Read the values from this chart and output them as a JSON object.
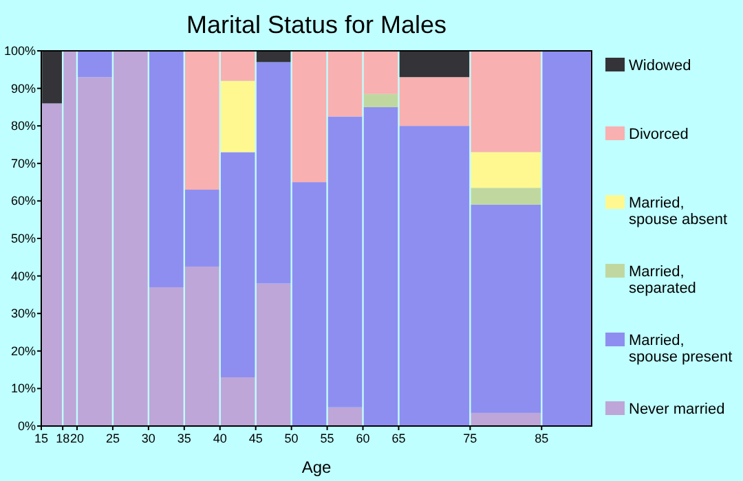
{
  "chart_data": {
    "type": "bar",
    "title": "Marital Status for Males",
    "xlabel": "Age",
    "stacked": true,
    "legend": "right",
    "grid": false,
    "x": [
      16.5,
      19,
      22.5,
      27.5,
      32.5,
      37.5,
      42.5,
      47.5,
      52.5,
      57.5,
      62.5,
      70,
      80,
      88.5
    ],
    "xlim": [
      15,
      92
    ],
    "xticks": [
      15,
      18,
      20,
      25,
      30,
      35,
      40,
      45,
      50,
      55,
      60,
      65,
      75,
      85
    ],
    "ylim": [
      0,
      100
    ],
    "yticks": [
      {
        "value": 0,
        "label": "0%"
      },
      {
        "value": 10,
        "label": "10%"
      },
      {
        "value": 20,
        "label": "20%"
      },
      {
        "value": 30,
        "label": "30%"
      },
      {
        "value": 40,
        "label": "40%"
      },
      {
        "value": 50,
        "label": "50%"
      },
      {
        "value": 60,
        "label": "60%"
      },
      {
        "value": 70,
        "label": "70%"
      },
      {
        "value": 80,
        "label": "80%"
      },
      {
        "value": 90,
        "label": "90%"
      },
      {
        "value": 100,
        "label": "100%"
      }
    ],
    "series": [
      {
        "name": "Never married",
        "color": "#bea6d8",
        "values": [
          86,
          100,
          93,
          100,
          37,
          42.5,
          13,
          38,
          0,
          5,
          0,
          0,
          3.5,
          0
        ]
      },
      {
        "name": "Married, spouse present",
        "color": "#8e8ef0",
        "values": [
          0,
          0,
          7,
          0,
          63,
          20.5,
          60,
          59,
          65,
          77.5,
          85,
          80,
          55.5,
          100
        ]
      },
      {
        "name": "Married, separated",
        "color": "#c0d8a0",
        "values": [
          0,
          0,
          0,
          0,
          0,
          0,
          0,
          0,
          0,
          0,
          3.5,
          0,
          4.5,
          0
        ]
      },
      {
        "name": "Married, spouse absent",
        "color": "#fff890",
        "values": [
          0,
          0,
          0,
          0,
          0,
          0,
          19,
          0,
          0,
          0,
          0,
          0,
          9.5,
          0
        ]
      },
      {
        "name": "Divorced",
        "color": "#f9b0b0",
        "values": [
          0,
          0,
          0,
          0,
          0,
          37,
          8,
          0,
          35,
          17.5,
          11.5,
          13,
          27,
          0
        ]
      },
      {
        "name": "Widowed",
        "color": "#333338",
        "values": [
          14,
          0,
          0,
          0,
          0,
          0,
          0,
          3,
          0,
          0,
          0,
          7,
          0,
          0
        ]
      }
    ]
  }
}
